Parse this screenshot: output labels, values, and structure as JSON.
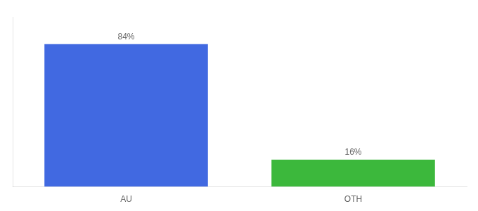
{
  "chart_data": {
    "type": "bar",
    "categories": [
      "AU",
      "OTH"
    ],
    "values": [
      84,
      16
    ],
    "value_labels": [
      "84%",
      "16%"
    ],
    "colors": [
      "#4169e1",
      "#3cb83c"
    ],
    "ylim": [
      0,
      100
    ],
    "data_labels": true,
    "tick_labels": "x",
    "grid": false
  }
}
